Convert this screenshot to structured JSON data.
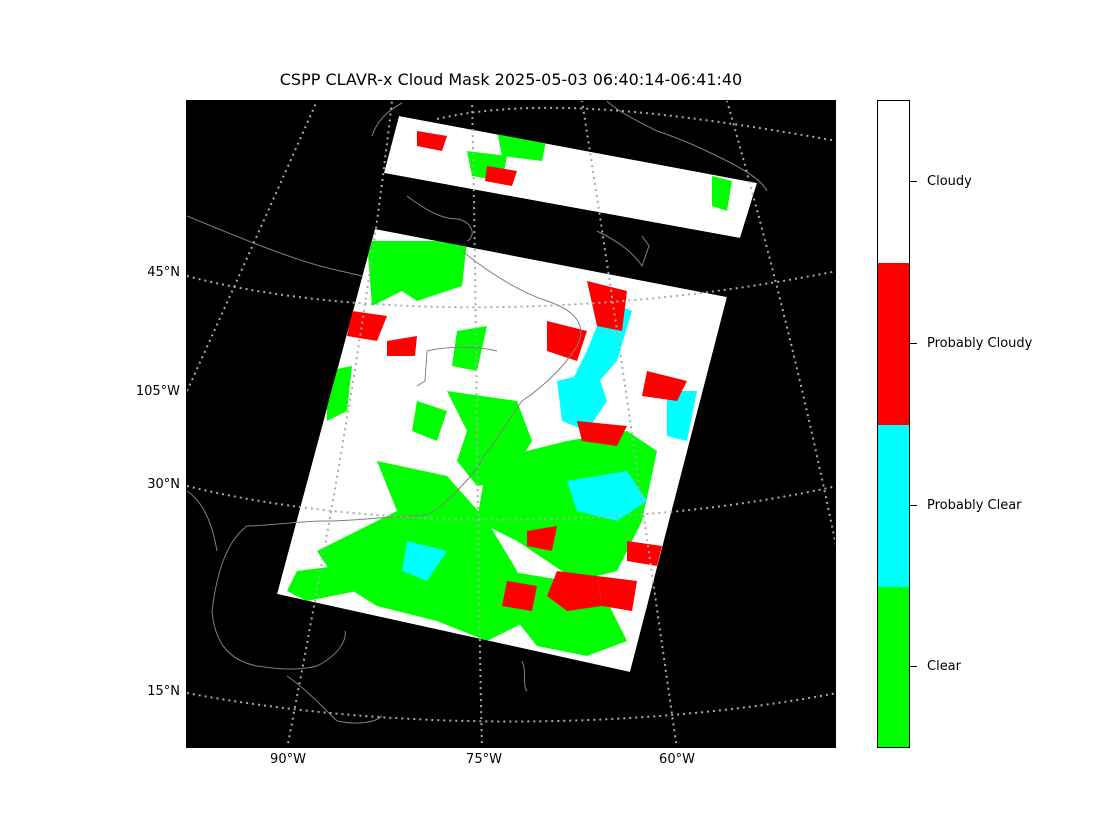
{
  "title": "CSPP CLAVR-x Cloud Mask 2025-05-03 06:40:14-06:41:40",
  "map": {
    "lat_labels": [
      "45°N",
      "105°W",
      "30°N",
      "15°N"
    ],
    "lon_labels": [
      "90°W",
      "75°W",
      "60°W"
    ],
    "background_color": "#000000",
    "coastline_color": "#808080",
    "gridline_style": "dotted"
  },
  "colorbar": {
    "categories": [
      {
        "label": "Cloudy",
        "color": "#ffffff"
      },
      {
        "label": "Probably Cloudy",
        "color": "#ff0000"
      },
      {
        "label": "Probably Clear",
        "color": "#00ffff"
      },
      {
        "label": "Clear",
        "color": "#00ff00"
      }
    ]
  }
}
